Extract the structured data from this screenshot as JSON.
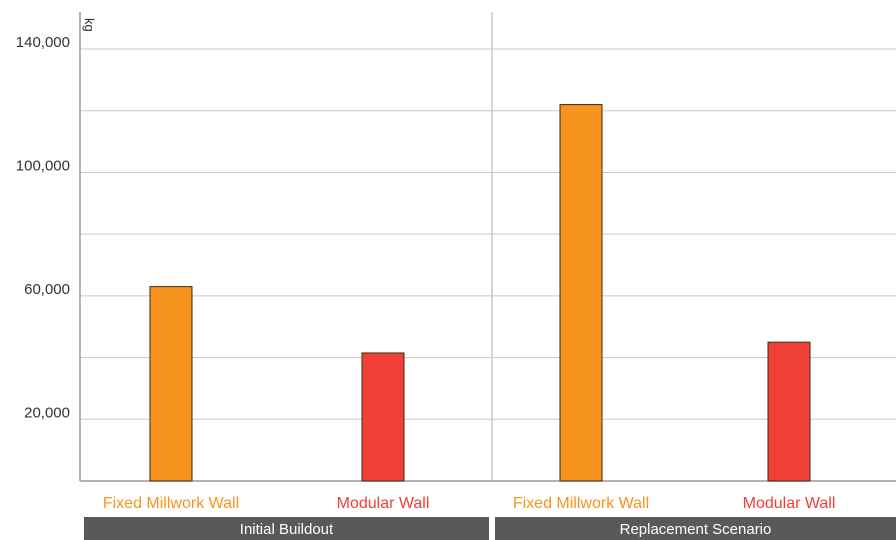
{
  "chart_data": {
    "type": "bar",
    "title": "",
    "ylabel": "kg",
    "ylim": [
      0,
      152000
    ],
    "yticks": [
      20000,
      60000,
      100000,
      140000
    ],
    "ytick_labels": [
      "20,000",
      "60,000",
      "100,000",
      "140,000"
    ],
    "grid": true,
    "groups": [
      {
        "label": "Initial Buildout",
        "bars": [
          {
            "label": "Fixed Millwork Wall",
            "value": 63000,
            "color": "#f7941d"
          },
          {
            "label": "Modular Wall",
            "value": 41500,
            "color": "#ef4136"
          }
        ]
      },
      {
        "label": "Replacement Scenario",
        "bars": [
          {
            "label": "Fixed Millwork Wall",
            "value": 122000,
            "color": "#f7941d"
          },
          {
            "label": "Modular Wall",
            "value": 45000,
            "color": "#ef4136"
          }
        ]
      }
    ],
    "colors": {
      "grid": "#c8c8c8",
      "axis": "#9a9a9a",
      "group_band": "#58595b",
      "bar_stroke": "#3a2a1a"
    }
  }
}
